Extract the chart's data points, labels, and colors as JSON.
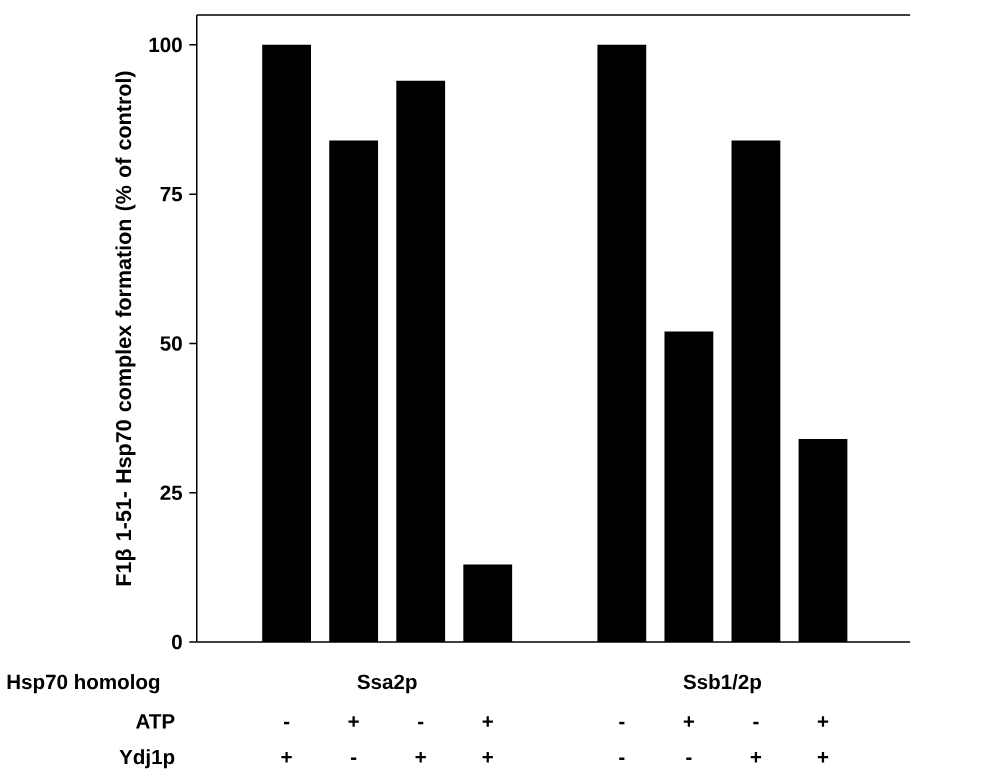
{
  "chart_data": {
    "type": "bar",
    "ylabel": "F1β 1-51- Hsp70 complex formation (% of control)",
    "categories": [
      "-",
      "+",
      "-",
      "+",
      "-",
      "+",
      "-",
      "+"
    ],
    "values": [
      100,
      84,
      94,
      13,
      100,
      52,
      84,
      34
    ],
    "color": "#000000",
    "ylim": [
      0,
      105
    ],
    "yticks": [
      0,
      25,
      50,
      75,
      100
    ],
    "annotations": [
      "Hsp70 homolog",
      "Ssa2p",
      "Ssb1/2p",
      "ATP",
      "Ydj1p",
      "+",
      "-",
      "+",
      "+",
      "-",
      "-",
      "+",
      "+"
    ]
  }
}
